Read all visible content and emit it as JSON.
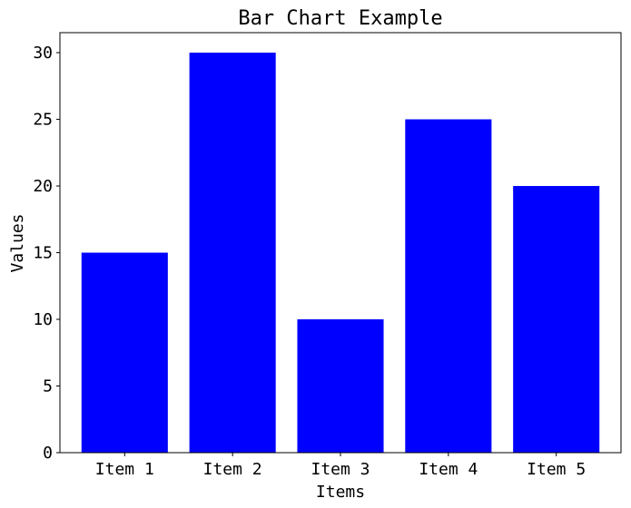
{
  "chart_data": {
    "type": "bar",
    "title": "Bar Chart Example",
    "xlabel": "Items",
    "ylabel": "Values",
    "categories": [
      "Item 1",
      "Item 2",
      "Item 3",
      "Item 4",
      "Item 5"
    ],
    "values": [
      15,
      30,
      10,
      25,
      20
    ],
    "ylim": [
      0,
      31.5
    ],
    "yticks": [
      0,
      5,
      10,
      15,
      20,
      25,
      30
    ],
    "grid": false,
    "bar_color": "#0000ff"
  }
}
